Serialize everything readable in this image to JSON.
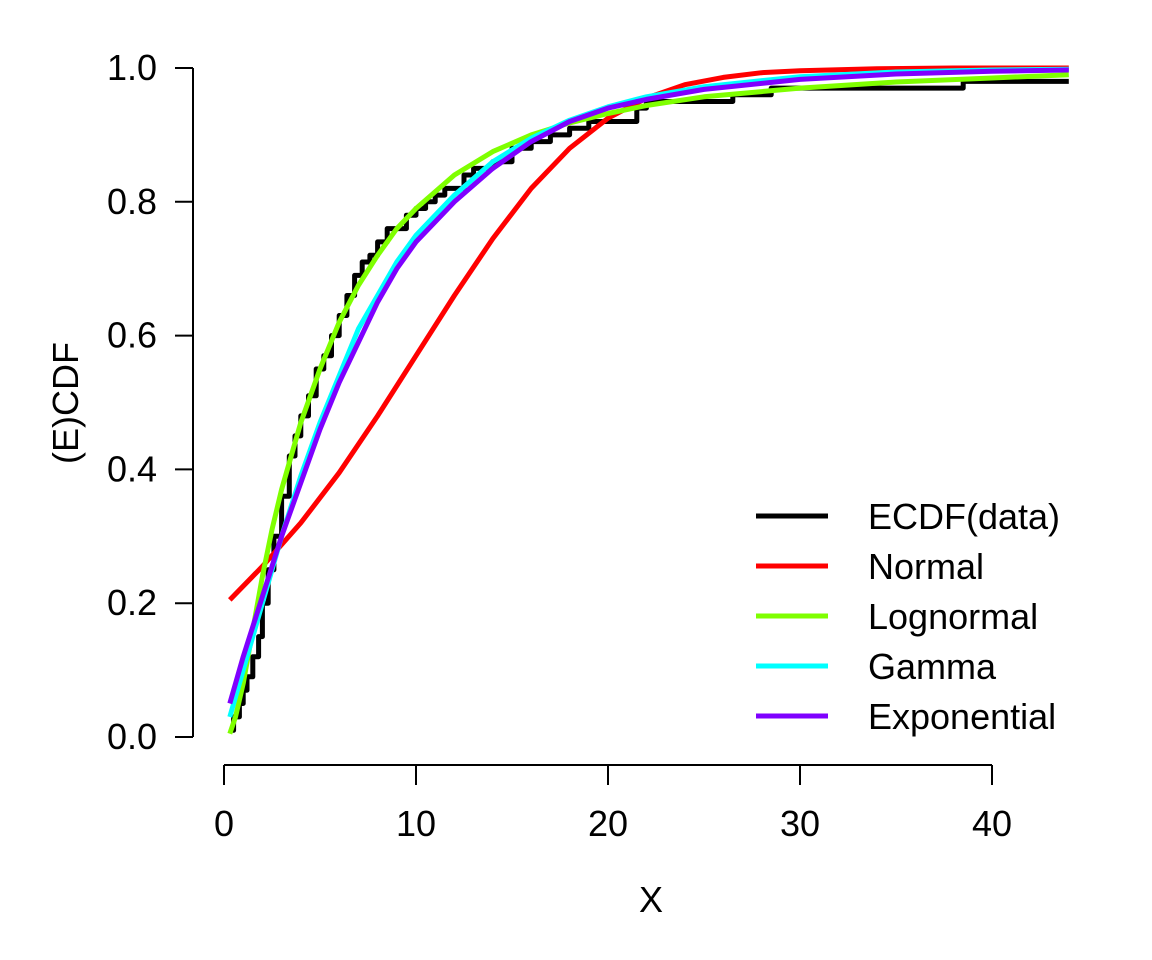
{
  "chart_data": {
    "type": "line",
    "xlabel": "X",
    "ylabel": "(E)CDF",
    "xlim": [
      0,
      44
    ],
    "ylim": [
      0,
      1
    ],
    "x_ticks": [
      0,
      10,
      20,
      30,
      40
    ],
    "y_ticks": [
      0.0,
      0.2,
      0.4,
      0.6,
      0.8,
      1.0
    ],
    "x_tick_labels": [
      "0",
      "10",
      "20",
      "30",
      "40"
    ],
    "y_tick_labels": [
      "0.0",
      "0.2",
      "0.4",
      "0.6",
      "0.8",
      "1.0"
    ],
    "grid": false,
    "legend_position": "bottom-right",
    "series": [
      {
        "name": "ECDF(data)",
        "color": "#000000",
        "step": true,
        "x": [
          0.3,
          0.5,
          0.8,
          1.0,
          1.2,
          1.5,
          1.8,
          2.0,
          2.3,
          2.6,
          3.0,
          3.4,
          3.7,
          4.0,
          4.4,
          4.8,
          5.2,
          5.6,
          6.0,
          6.4,
          6.8,
          7.2,
          7.6,
          8.0,
          8.5,
          9.0,
          9.5,
          10.0,
          10.5,
          11.0,
          11.5,
          12.0,
          12.5,
          13.0,
          13.5,
          14.0,
          15.0,
          16.0,
          17.0,
          18.0,
          19.0,
          20.0,
          21.0,
          21.5,
          22.0,
          23.0,
          24.0,
          26.0,
          26.5,
          28.0,
          28.5,
          30.0,
          38.0,
          38.5,
          44.0
        ],
        "y": [
          0.01,
          0.03,
          0.05,
          0.07,
          0.09,
          0.12,
          0.15,
          0.2,
          0.25,
          0.3,
          0.36,
          0.42,
          0.45,
          0.48,
          0.51,
          0.55,
          0.57,
          0.6,
          0.63,
          0.66,
          0.69,
          0.71,
          0.72,
          0.74,
          0.76,
          0.76,
          0.78,
          0.79,
          0.8,
          0.81,
          0.82,
          0.82,
          0.84,
          0.85,
          0.85,
          0.86,
          0.88,
          0.89,
          0.9,
          0.91,
          0.92,
          0.92,
          0.92,
          0.94,
          0.95,
          0.95,
          0.95,
          0.95,
          0.96,
          0.96,
          0.97,
          0.97,
          0.97,
          0.98,
          0.98
        ]
      },
      {
        "name": "Normal",
        "color": "#ff0000",
        "x": [
          0.3,
          2,
          4,
          6,
          8,
          10,
          12,
          14,
          16,
          18,
          20,
          22,
          24,
          26,
          28,
          30,
          34,
          38,
          44
        ],
        "y": [
          0.205,
          0.255,
          0.32,
          0.395,
          0.48,
          0.57,
          0.66,
          0.745,
          0.82,
          0.88,
          0.925,
          0.955,
          0.975,
          0.986,
          0.993,
          0.996,
          0.999,
          1.0,
          1.0
        ]
      },
      {
        "name": "Lognormal",
        "color": "#7fff00",
        "x": [
          0.3,
          0.6,
          1,
          1.5,
          2,
          2.5,
          3,
          4,
          5,
          6,
          7,
          8,
          9,
          10,
          12,
          14,
          16,
          18,
          20,
          22,
          25,
          30,
          35,
          40,
          44
        ],
        "y": [
          0.005,
          0.03,
          0.08,
          0.16,
          0.24,
          0.31,
          0.37,
          0.47,
          0.55,
          0.62,
          0.675,
          0.72,
          0.76,
          0.79,
          0.84,
          0.875,
          0.9,
          0.918,
          0.932,
          0.944,
          0.957,
          0.97,
          0.979,
          0.985,
          0.99
        ]
      },
      {
        "name": "Gamma",
        "color": "#00ffff",
        "x": [
          0.3,
          1,
          2,
          3,
          4,
          5,
          6,
          7,
          8,
          9,
          10,
          12,
          14,
          16,
          18,
          20,
          22,
          25,
          30,
          35,
          40,
          44
        ],
        "y": [
          0.03,
          0.1,
          0.2,
          0.3,
          0.39,
          0.47,
          0.54,
          0.61,
          0.66,
          0.71,
          0.75,
          0.81,
          0.86,
          0.895,
          0.922,
          0.942,
          0.957,
          0.972,
          0.987,
          0.994,
          0.997,
          0.998
        ]
      },
      {
        "name": "Exponential",
        "color": "#7f00ff",
        "x": [
          0.3,
          1,
          2,
          3,
          4,
          5,
          6,
          7,
          8,
          9,
          10,
          12,
          14,
          16,
          18,
          20,
          22,
          25,
          30,
          35,
          40,
          44
        ],
        "y": [
          0.05,
          0.12,
          0.21,
          0.3,
          0.38,
          0.46,
          0.53,
          0.59,
          0.65,
          0.7,
          0.74,
          0.8,
          0.85,
          0.89,
          0.92,
          0.94,
          0.953,
          0.968,
          0.983,
          0.991,
          0.995,
          0.997
        ]
      }
    ]
  }
}
